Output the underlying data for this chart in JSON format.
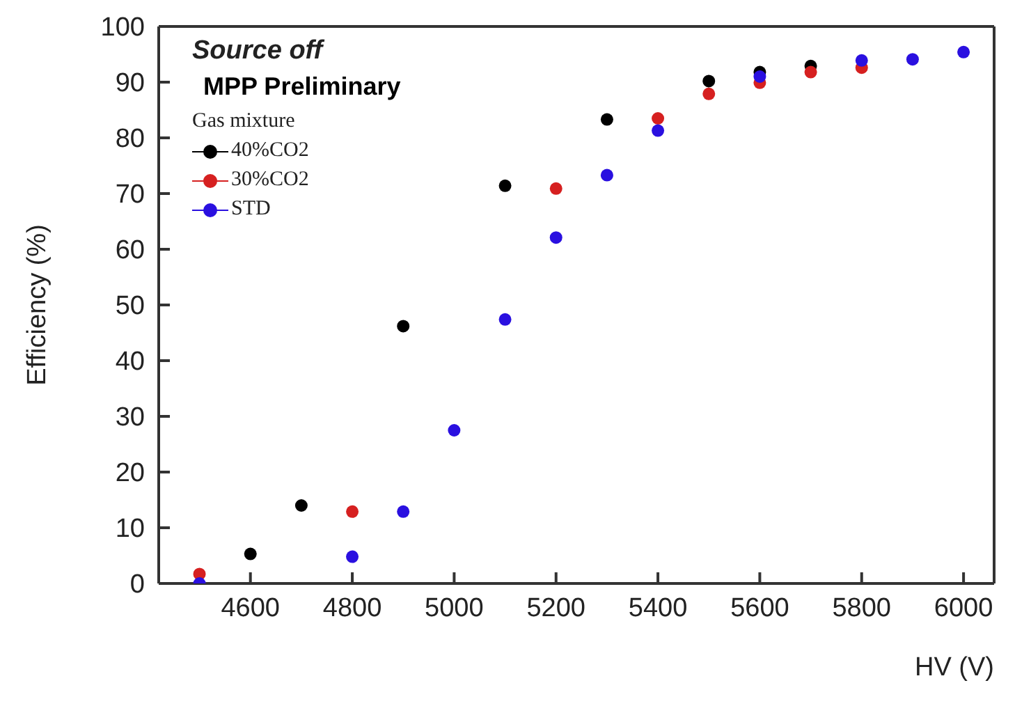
{
  "chart_data": {
    "type": "scatter",
    "xlabel": "HV (V)",
    "ylabel": "Efficiency (%)",
    "legend_title": "Gas mixture",
    "annotations": [
      "Source off",
      "MPP Preliminary"
    ],
    "xlim": [
      4420,
      6060
    ],
    "xticks": [
      4600,
      4800,
      5000,
      5200,
      5400,
      5600,
      5800,
      6000
    ],
    "ylim": [
      0,
      100
    ],
    "yticks": [
      0,
      10,
      20,
      30,
      40,
      50,
      60,
      70,
      80,
      90,
      100
    ],
    "legend": "top left",
    "marker": "circle",
    "series": [
      {
        "name": "40%CO2",
        "color": "#000000",
        "x": [
          4600,
          4700,
          4900,
          5100,
          5300,
          5500,
          5600,
          5700
        ],
        "values": [
          5.3,
          14,
          46.2,
          71.4,
          83.3,
          90.2,
          91.8,
          92.9
        ]
      },
      {
        "name": "30%CO2",
        "color": "#d62020",
        "x": [
          4500,
          4800,
          5200,
          5400,
          5500,
          5600,
          5700,
          5800
        ],
        "values": [
          1.7,
          12.9,
          70.9,
          83.5,
          87.9,
          89.9,
          91.8,
          92.6
        ]
      },
      {
        "name": "STD",
        "color": "#2a10e0",
        "x": [
          4500,
          4800,
          4900,
          5000,
          5100,
          5200,
          5300,
          5400,
          5600,
          5800,
          5900,
          6000
        ],
        "values": [
          0,
          4.8,
          12.9,
          27.5,
          47.4,
          62.1,
          73.3,
          81.3,
          91,
          93.9,
          94.1,
          95.4
        ]
      }
    ]
  }
}
